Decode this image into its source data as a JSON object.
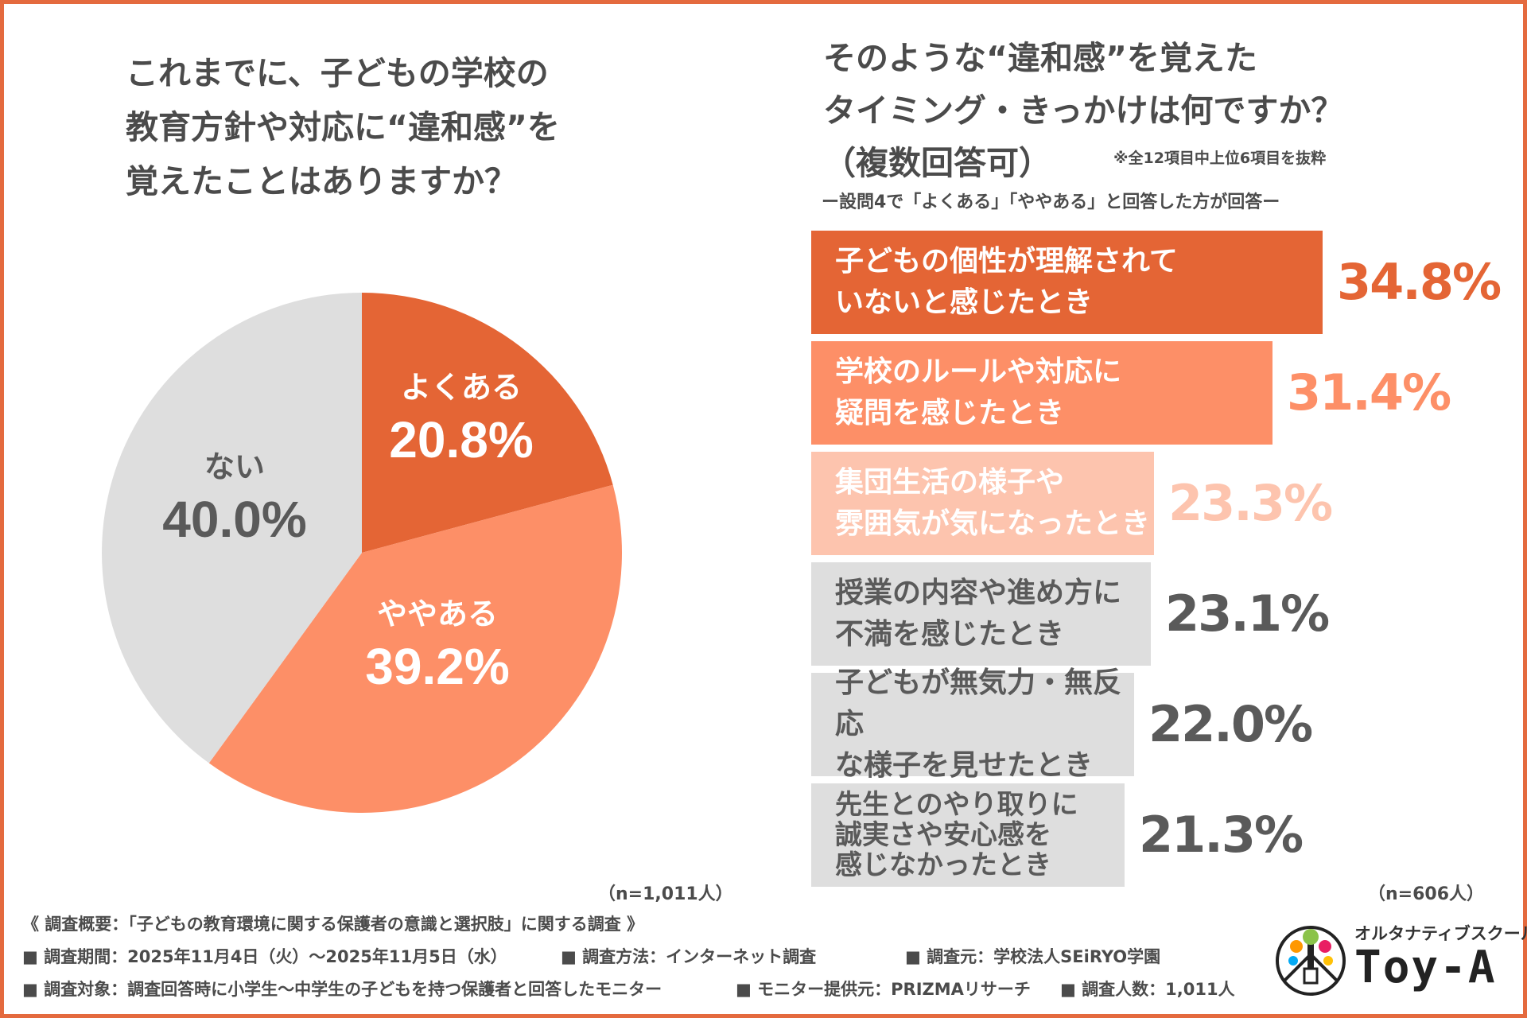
{
  "left_question": {
    "lines": [
      "これまでに、子どもの学校の",
      "教育方針や対応に“違和感”を",
      "覚えたことはありますか？"
    ],
    "n": "（n=1,011人）"
  },
  "right_question": {
    "lines": [
      "そのような“違和感”を覚えた",
      "タイミング・きっかけは何ですか？",
      "（複数回答可）"
    ],
    "note": "※全12項目中上位6項目を抜粋",
    "sub": "ー設問4で「よくある」「ややある」と回答した方が回答ー",
    "n": "（n=606人）"
  },
  "chart_data": [
    {
      "type": "pie",
      "title": "これまでに、子どもの学校の教育方針や対応に“違和感”を覚えたことはありますか？",
      "slices": [
        {
          "label": "よくある",
          "value": 20.8,
          "display": "20.8%",
          "color": "#e46535",
          "text_color": "#ffffff"
        },
        {
          "label": "ややある",
          "value": 39.2,
          "display": "39.2%",
          "color": "#fd8f67",
          "text_color": "#ffffff"
        },
        {
          "label": "ない",
          "value": 40.0,
          "display": "40.0%",
          "color": "#dedede",
          "text_color": "#5a5a5a"
        }
      ]
    },
    {
      "type": "bar",
      "orientation": "horizontal",
      "title": "そのような“違和感”を覚えたタイミング・きっかけは何ですか？（複数回答可）",
      "xlim": [
        0,
        34.8
      ],
      "items": [
        {
          "label": "子どもの個性が理解されて\nいないと感じたとき",
          "value": 34.8,
          "display": "34.8%",
          "color": "#e46535",
          "text_color": "#ffffff",
          "value_color": "#e46535"
        },
        {
          "label": "学校のルールや対応に\n疑問を感じたとき",
          "value": 31.4,
          "display": "31.4%",
          "color": "#fd8f67",
          "text_color": "#ffffff",
          "value_color": "#fd8f67"
        },
        {
          "label": "集団生活の様子や\n雰囲気が気になったとき",
          "value": 23.3,
          "display": "23.3%",
          "color": "#fdc4ae",
          "text_color": "#ffffff",
          "value_color": "#fdc4ae"
        },
        {
          "label": "授業の内容や進め方に\n不満を感じたとき",
          "value": 23.1,
          "display": "23.1%",
          "color": "#dedede",
          "text_color": "#5a5a5a",
          "value_color": "#5a5a5a"
        },
        {
          "label": "子どもが無気力・無反応\nな様子を見せたとき",
          "value": 22.0,
          "display": "22.0%",
          "color": "#dedede",
          "text_color": "#5a5a5a",
          "value_color": "#5a5a5a"
        },
        {
          "label": "先生とのやり取りに\n誠実さや安心感を\n感じなかったとき",
          "value": 21.3,
          "display": "21.3%",
          "color": "#dedede",
          "text_color": "#5a5a5a",
          "value_color": "#5a5a5a"
        }
      ]
    }
  ],
  "footer": {
    "line1": "《 調査概要：「子どもの教育環境に関する保護者の意識と選択肢」に関する調査 》",
    "period": "■ 調査期間：2025年11月4日（火）～2025年11月5日（水）",
    "method": "■ 調査方法：インターネット調査",
    "source": "■ 調査元：学校法人SEiRYO学園",
    "target": "■ 調査対象：調査回答時に小学生～中学生の子どもを持つ保護者と回答したモニター",
    "provider": "■ モニター提供元：PRIZMAリサーチ",
    "count": "■ 調査人数：1,011人"
  },
  "logo": {
    "subtitle": "オルタナティブスクール",
    "name": "Toy-A"
  },
  "colors": {
    "accent": "#e46a3e",
    "text": "#4b4b4b"
  }
}
